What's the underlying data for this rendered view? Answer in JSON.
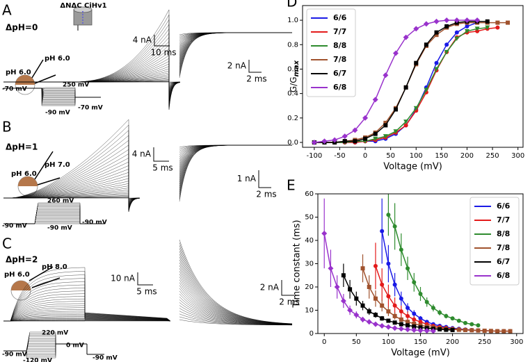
{
  "panels": [
    {
      "label": "A",
      "delta_ph": "ΔpH=0",
      "construct": "ΔNΔC CiHv1",
      "ph_in": "pH 6.0",
      "ph_out": "pH 6.0",
      "scale_left": [
        "4 nA",
        "10 ms"
      ],
      "scale_right": [
        "2 nA",
        "2 ms"
      ],
      "protocol": [
        "250 mV",
        "-70 mV",
        "-90 mV",
        "-70 mV"
      ]
    },
    {
      "label": "B",
      "delta_ph": "ΔpH=1",
      "ph_in": "pH 6.0",
      "ph_out": "pH 7.0",
      "scale_left": [
        "4 nA",
        "5 ms"
      ],
      "scale_right": [
        "1 nA",
        "2 ms"
      ],
      "protocol": [
        "260 mV",
        "-90 mV",
        "-90 mV",
        "-90 mV"
      ]
    },
    {
      "label": "C",
      "delta_ph": "ΔpH=2",
      "ph_in": "pH 6.0",
      "ph_out": "pH 8.0",
      "scale_left": [
        "10 nA",
        "5 ms"
      ],
      "scale_right": [
        "2 nA",
        "2 ms"
      ],
      "protocol": [
        "220 mV",
        "0 mV",
        "-90 mV",
        "-120 mV",
        "-90 mV"
      ]
    }
  ],
  "chart_data": [
    {
      "type": "line",
      "panel": "D",
      "xlabel": "Voltage (mV)",
      "ylabel": "G/G",
      "ylabel_sub": "max",
      "legend": "upper left",
      "xlim": [
        -123,
        310
      ],
      "ylim": [
        -0.04,
        1.12
      ],
      "xticks": [
        -100,
        -50,
        0,
        50,
        100,
        150,
        200,
        250,
        300
      ],
      "yticks": [
        {
          "value": 0,
          "label": "0.0"
        },
        {
          "value": 0.2,
          "label": "0.2"
        },
        {
          "value": 0.4,
          "label": "0.4"
        },
        {
          "value": 0.6,
          "label": "0.6"
        },
        {
          "value": 0.8,
          "label": "0.8"
        },
        {
          "value": 1,
          "label": "1.0"
        }
      ],
      "series": [
        {
          "name": "6/6",
          "color": "#1a1ae6",
          "marker": "circle",
          "x": [
            -100,
            -80,
            -60,
            -40,
            -20,
            0,
            20,
            40,
            60,
            80,
            100,
            120,
            140,
            160,
            180,
            200,
            220
          ],
          "values": [
            0,
            0,
            0,
            0,
            0,
            0.01,
            0.01,
            0.03,
            0.07,
            0.14,
            0.27,
            0.45,
            0.65,
            0.8,
            0.9,
            0.95,
            0.98
          ]
        },
        {
          "name": "7/7",
          "color": "#e31a1a",
          "marker": "circle",
          "x": [
            -100,
            -80,
            -60,
            -40,
            -20,
            0,
            20,
            40,
            60,
            80,
            100,
            120,
            140,
            160,
            180,
            200,
            220,
            240,
            260
          ],
          "values": [
            0,
            0,
            0,
            0,
            0,
            0.01,
            0.02,
            0.04,
            0.08,
            0.14,
            0.26,
            0.41,
            0.59,
            0.74,
            0.86,
            0.9,
            0.91,
            0.93,
            0.94
          ]
        },
        {
          "name": "8/8",
          "color": "#2e8b2e",
          "marker": "triangle",
          "x": [
            -100,
            -80,
            -60,
            -40,
            -20,
            0,
            20,
            40,
            60,
            80,
            100,
            120,
            140,
            160,
            180,
            200,
            220,
            240
          ],
          "values": [
            0,
            0,
            0,
            0,
            0.01,
            0.01,
            0.03,
            0.05,
            0.09,
            0.17,
            0.28,
            0.43,
            0.6,
            0.74,
            0.85,
            0.91,
            0.93,
            0.94
          ]
        },
        {
          "name": "7/8",
          "color": "#a0522d",
          "marker": "square",
          "x": [
            -100,
            -80,
            -60,
            -40,
            -20,
            0,
            20,
            40,
            60,
            80,
            100,
            120,
            140,
            160,
            180,
            200,
            220,
            240,
            260,
            280
          ],
          "values": [
            0,
            0,
            0,
            0.01,
            0.02,
            0.04,
            0.08,
            0.16,
            0.28,
            0.45,
            0.64,
            0.79,
            0.88,
            0.94,
            0.97,
            0.98,
            0.98,
            0.98,
            0.98,
            0.98
          ]
        },
        {
          "name": "6/7",
          "color": "#000000",
          "marker": "square",
          "x": [
            -100,
            -80,
            -60,
            -40,
            -20,
            0,
            20,
            40,
            60,
            80,
            100,
            120,
            140,
            160,
            180,
            200,
            220,
            240
          ],
          "values": [
            0,
            0,
            0,
            0.01,
            0.01,
            0.03,
            0.07,
            0.14,
            0.27,
            0.45,
            0.65,
            0.8,
            0.9,
            0.95,
            0.98,
            0.99,
            0.99,
            0.99
          ]
        },
        {
          "name": "6/8",
          "color": "#9932cc",
          "marker": "diamond",
          "x": [
            -100,
            -80,
            -60,
            -40,
            -20,
            0,
            20,
            40,
            60,
            80,
            100,
            120,
            140,
            160,
            180,
            200,
            220
          ],
          "values": [
            0,
            0.01,
            0.02,
            0.05,
            0.1,
            0.2,
            0.35,
            0.55,
            0.73,
            0.86,
            0.93,
            0.97,
            0.99,
            1,
            1,
            1,
            1
          ]
        }
      ]
    },
    {
      "type": "line",
      "panel": "E",
      "xlabel": "Voltage (mV)",
      "ylabel": "Time constant (ms)",
      "legend": "upper right",
      "xlim": [
        -10,
        310
      ],
      "ylim": [
        0,
        60
      ],
      "xticks": [
        0,
        50,
        100,
        150,
        200,
        250,
        300
      ],
      "yticks": [
        0,
        10,
        20,
        30,
        40,
        50,
        60
      ],
      "series": [
        {
          "name": "6/6",
          "color": "#1a1ae6",
          "marker": "circle",
          "x": [
            90,
            100,
            110,
            120,
            130,
            140,
            150,
            160,
            170,
            180,
            190,
            200,
            210,
            220,
            230,
            240,
            250,
            260
          ],
          "values": [
            44,
            30,
            21,
            15,
            11,
            8.5,
            6.5,
            5,
            4,
            3.3,
            2.8,
            2.3,
            2,
            1.7,
            1.5,
            1.3,
            1.2,
            1.1
          ],
          "errors": [
            14,
            8,
            5,
            3,
            2,
            1.5,
            1,
            0.8,
            0.6,
            0.5,
            0.4,
            0.3,
            0.3,
            0.2,
            0.2,
            0.2,
            0.2,
            0.2
          ]
        },
        {
          "name": "7/7",
          "color": "#e31a1a",
          "marker": "circle",
          "x": [
            80,
            90,
            100,
            110,
            120,
            130,
            140,
            150,
            160,
            170,
            180,
            190,
            200,
            210,
            220,
            230,
            240,
            250,
            260,
            270,
            280,
            290
          ],
          "values": [
            29,
            21,
            16,
            12,
            9.5,
            7.5,
            6,
            5,
            4,
            3.3,
            2.8,
            2.4,
            2,
            1.8,
            1.6,
            1.4,
            1.3,
            1.2,
            1.1,
            1,
            1,
            1
          ],
          "errors": [
            10,
            7,
            5,
            3.5,
            2.5,
            2,
            1.5,
            1,
            0.8,
            0.6,
            0.5,
            0.4,
            0.3,
            0.3,
            0.2,
            0.2,
            0.2,
            0.2,
            0.2,
            0.2,
            0.2,
            0.2
          ]
        },
        {
          "name": "8/8",
          "color": "#2e8b2e",
          "marker": "circle",
          "x": [
            100,
            110,
            120,
            130,
            140,
            150,
            160,
            170,
            180,
            190,
            200,
            210,
            220,
            230,
            240
          ],
          "values": [
            51,
            46,
            36,
            28,
            22,
            17,
            13.5,
            11,
            9,
            7.5,
            6.5,
            5.5,
            4.5,
            4,
            3.5
          ],
          "errors": [
            9,
            10,
            7,
            5,
            4,
            3,
            2,
            1.5,
            1.2,
            1,
            0.8,
            0.7,
            0.6,
            0.5,
            0.5
          ]
        },
        {
          "name": "7/8",
          "color": "#a0522d",
          "marker": "square",
          "x": [
            60,
            70,
            80,
            90,
            100,
            110,
            120,
            130,
            140,
            150,
            160,
            170,
            180,
            190,
            200,
            210,
            220,
            230,
            240,
            250,
            260,
            270,
            280,
            290
          ],
          "values": [
            28,
            20,
            15,
            12,
            9.5,
            7.5,
            6,
            5,
            4.2,
            3.5,
            3,
            2.6,
            2.3,
            2,
            1.8,
            1.6,
            1.5,
            1.4,
            1.3,
            1.2,
            1.1,
            1,
            1,
            1
          ],
          "errors": [
            6,
            5,
            3.5,
            2.5,
            2,
            1.5,
            1.2,
            1,
            0.8,
            0.6,
            0.5,
            0.4,
            0.4,
            0.3,
            0.3,
            0.3,
            0.2,
            0.2,
            0.2,
            0.2,
            0.2,
            0.2,
            0.2,
            0.2
          ]
        },
        {
          "name": "6/7",
          "color": "#000000",
          "marker": "square",
          "x": [
            30,
            40,
            50,
            60,
            70,
            80,
            90,
            100,
            110,
            120,
            130,
            140,
            150,
            160,
            170,
            180,
            190,
            200
          ],
          "values": [
            25,
            19,
            15,
            12,
            9.5,
            8,
            6.5,
            5.5,
            4.7,
            4,
            3.5,
            3,
            2.6,
            2.3,
            2,
            1.8,
            1.6,
            1.5
          ],
          "errors": [
            5,
            4,
            3,
            2,
            1.5,
            1.2,
            1,
            0.8,
            0.6,
            0.5,
            0.4,
            0.4,
            0.3,
            0.3,
            0.3,
            0.2,
            0.2,
            0.2
          ]
        },
        {
          "name": "6/8",
          "color": "#9932cc",
          "marker": "diamond",
          "x": [
            0,
            10,
            20,
            30,
            40,
            50,
            60,
            70,
            80,
            90,
            100,
            110,
            120,
            130,
            140,
            150,
            160,
            170
          ],
          "values": [
            43,
            28,
            20,
            14,
            10,
            8,
            6,
            5,
            4,
            3.3,
            2.8,
            2.3,
            2,
            1.7,
            1.5,
            1.3,
            1.2,
            1.1
          ],
          "errors": [
            15,
            8,
            5,
            3,
            2,
            1.5,
            1.2,
            1,
            0.8,
            0.6,
            0.5,
            0.4,
            0.3,
            0.3,
            0.2,
            0.2,
            0.2,
            0.2
          ]
        }
      ]
    }
  ]
}
